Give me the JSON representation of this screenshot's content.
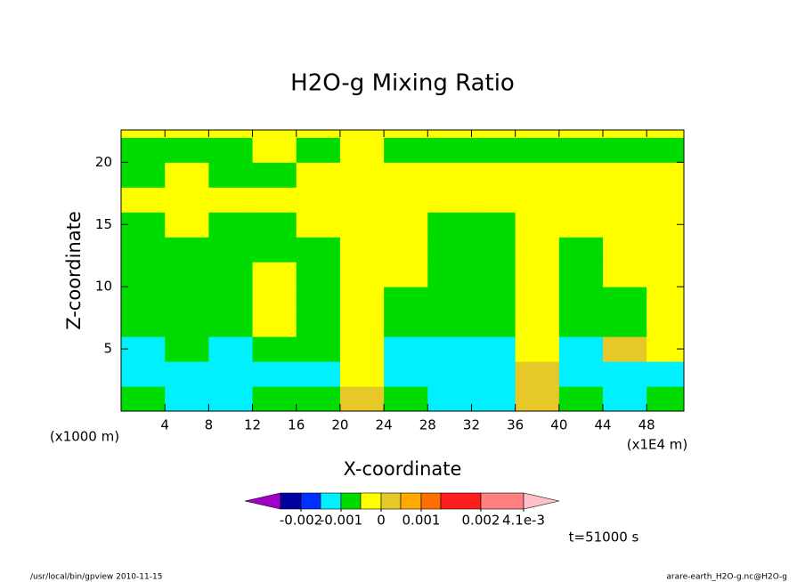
{
  "chart_data": {
    "type": "contour",
    "title": "H2O-g Mixing Ratio",
    "x_label": "X-coordinate",
    "y_label": "Z-coordinate",
    "x_unit": "(x1000 m)",
    "x_unit_right": "(x1E4 m)",
    "time_label": "t=51000 s",
    "footer_left": "/usr/local/bin/gpview  2010-11-15",
    "footer_right": "arare-earth_H2O-g.nc@H2O-g",
    "xlim": [
      0,
      51.4
    ],
    "ylim": [
      0,
      22.6
    ],
    "xticks": [
      4,
      8,
      12,
      16,
      20,
      24,
      28,
      32,
      36,
      40,
      44,
      48
    ],
    "yticks": [
      5,
      10,
      15,
      20
    ],
    "x": [
      2,
      6,
      10,
      14,
      18,
      22,
      26,
      30,
      34,
      38,
      42,
      46,
      50
    ],
    "y": [
      1,
      3,
      5,
      7,
      9,
      11,
      13,
      15,
      17,
      19,
      21,
      23
    ],
    "z": [
      [
        -0.0007,
        -0.0012,
        -0.0012,
        -0.0007,
        -0.0007,
        0.0002,
        -0.0007,
        -0.0012,
        -0.0012,
        0.0002,
        -0.0007,
        -0.0012,
        -0.0007
      ],
      [
        -0.0012,
        -0.0012,
        -0.0012,
        -0.0012,
        -0.0012,
        -0.0003,
        -0.0012,
        -0.0012,
        -0.0012,
        0.0002,
        -0.0012,
        -0.0012,
        -0.0012
      ],
      [
        -0.0012,
        -0.0007,
        -0.0012,
        -0.0007,
        -0.0007,
        -0.0003,
        -0.0012,
        -0.0012,
        -0.0012,
        -0.0003,
        -0.0012,
        0.0002,
        -0.0003
      ],
      [
        -0.0007,
        -0.0007,
        -0.0007,
        -0.0003,
        -0.0007,
        -0.0003,
        -0.0007,
        -0.0007,
        -0.0007,
        -0.0003,
        -0.0007,
        -0.0007,
        -0.0003
      ],
      [
        -0.0007,
        -0.0007,
        -0.0007,
        -0.0003,
        -0.0007,
        -0.0003,
        -0.0007,
        -0.0007,
        -0.0007,
        -0.0003,
        -0.0007,
        -0.0007,
        -0.0003
      ],
      [
        -0.0007,
        -0.0007,
        -0.0007,
        -0.0003,
        -0.0007,
        -0.0003,
        -0.0003,
        -0.0007,
        -0.0007,
        -0.0003,
        -0.0007,
        -0.0003,
        -0.0003
      ],
      [
        -0.0007,
        -0.0007,
        -0.0007,
        -0.0007,
        -0.0007,
        -0.0003,
        -0.0003,
        -0.0007,
        -0.0007,
        -0.0003,
        -0.0007,
        -0.0003,
        -0.0003
      ],
      [
        -0.0007,
        -0.0003,
        -0.0007,
        -0.0007,
        -0.0003,
        -0.0003,
        -0.0003,
        -0.0007,
        -0.0007,
        -0.0003,
        -0.0003,
        -0.0003,
        -0.0003
      ],
      [
        -0.0003,
        -0.0003,
        -0.0003,
        -0.0003,
        -0.0003,
        -0.0003,
        -0.0003,
        -0.0003,
        -0.0003,
        -0.0003,
        -0.0003,
        -0.0003,
        -0.0003
      ],
      [
        -0.0007,
        -0.0003,
        -0.0007,
        -0.0007,
        -0.0003,
        -0.0003,
        -0.0003,
        -0.0003,
        -0.0003,
        -0.0003,
        -0.0003,
        -0.0003,
        -0.0003
      ],
      [
        -0.0007,
        -0.0007,
        -0.0007,
        -0.0003,
        -0.0007,
        -0.0003,
        -0.0007,
        -0.0007,
        -0.0007,
        -0.0007,
        -0.0007,
        -0.0007,
        -0.0007
      ],
      [
        -0.0003,
        -0.0003,
        -0.0003,
        -0.0003,
        -0.0003,
        -0.0003,
        -0.0003,
        -0.0003,
        -0.0003,
        -0.0003,
        -0.0003,
        -0.0003,
        -0.0003
      ]
    ],
    "levels": [
      -0.0025,
      -0.002,
      -0.0015,
      -0.001,
      -0.0005,
      0,
      0.0005,
      0.001,
      0.0015,
      0.002,
      0.0041
    ],
    "colors": [
      "#a000c8",
      "#0000a0",
      "#0030ff",
      "#00f0ff",
      "#00dc00",
      "#ffff00",
      "#e6c828",
      "#ffaa00",
      "#ff6e00",
      "#ff1e1e",
      "#ff8080",
      "#ffc0c8"
    ],
    "colorbar_ticks": [
      -0.002,
      -0.001,
      0,
      0.001,
      0.002,
      {
        "value": 0.0041,
        "label": "4.1e-3"
      }
    ]
  }
}
